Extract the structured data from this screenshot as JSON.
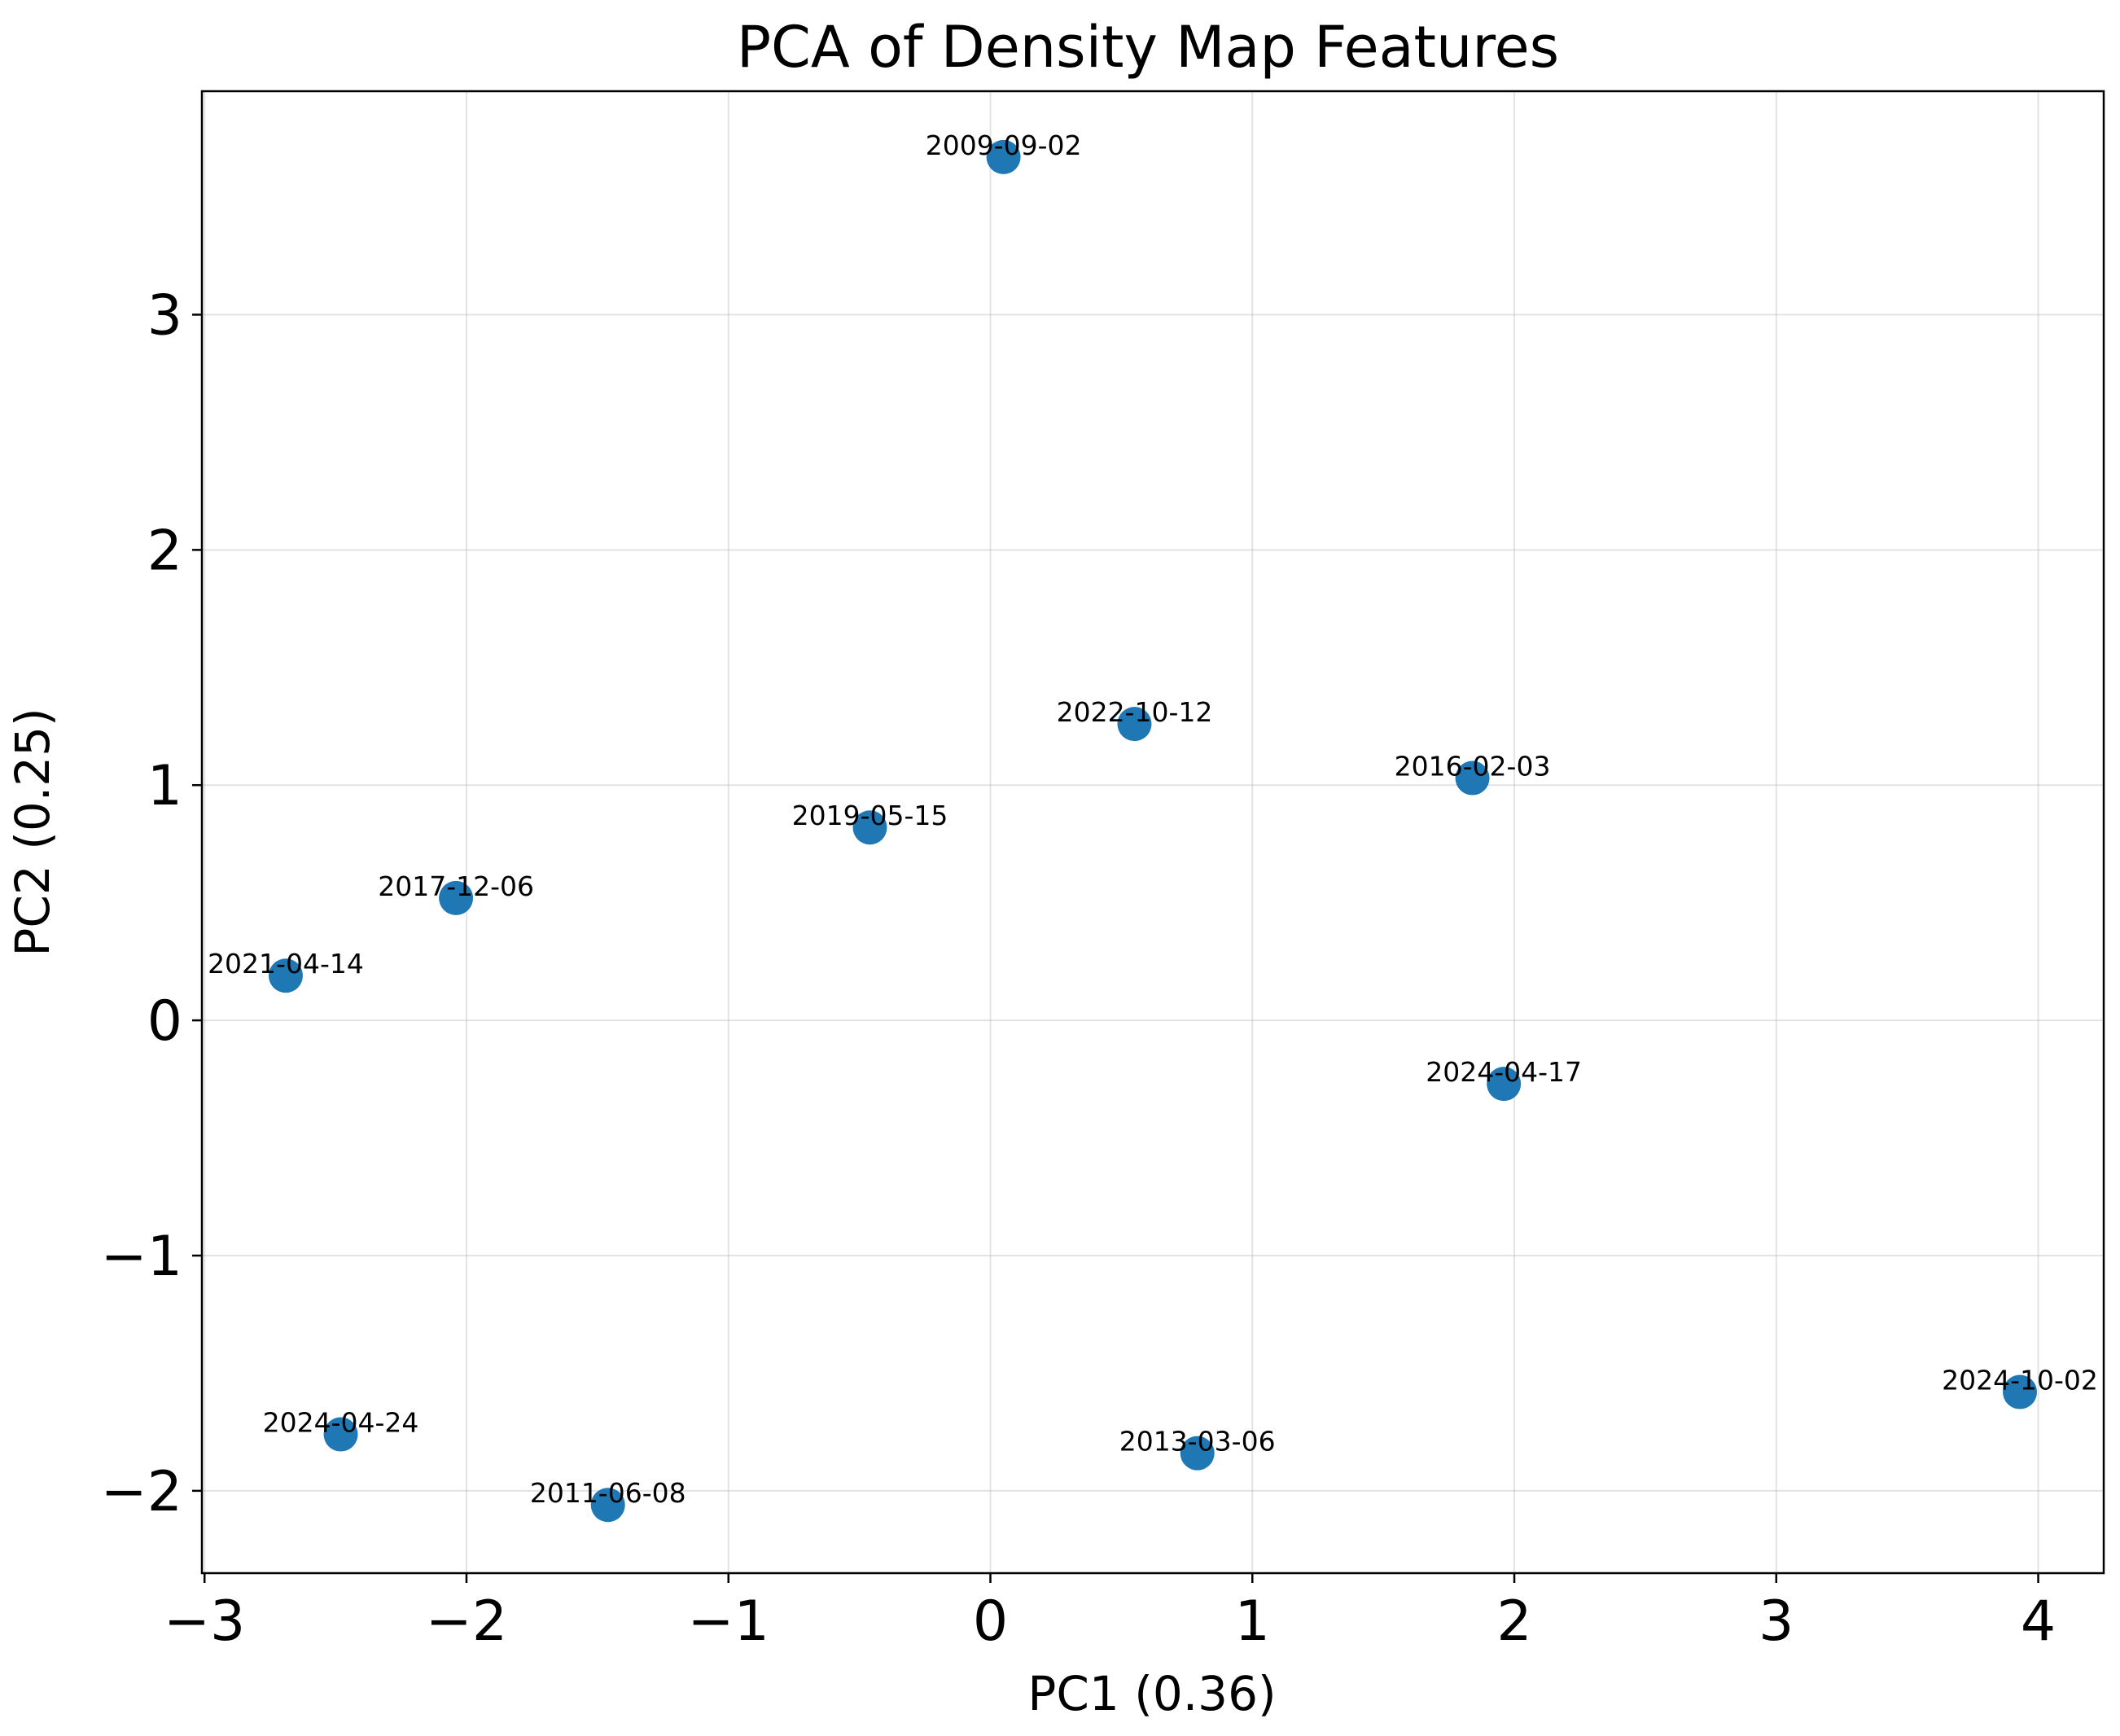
{
  "chart_data": {
    "type": "scatter",
    "title": "PCA of Density Map Features",
    "xlabel": "PC1 (0.36)",
    "ylabel": "PC2 (0.25)",
    "xlim": [
      -3.01,
      4.25
    ],
    "ylim": [
      -2.35,
      3.95
    ],
    "xticks": [
      -3,
      -2,
      -1,
      0,
      1,
      2,
      3,
      4
    ],
    "yticks": [
      -2,
      -1,
      0,
      1,
      2,
      3
    ],
    "grid": true,
    "marker_color": "#1f77b4",
    "points": [
      {
        "x": 0.05,
        "y": 3.67,
        "label": "2009-09-02"
      },
      {
        "x": 0.55,
        "y": 1.26,
        "label": "2022-10-12"
      },
      {
        "x": 1.84,
        "y": 1.03,
        "label": "2016-02-03"
      },
      {
        "x": -0.46,
        "y": 0.82,
        "label": "2019-05-15"
      },
      {
        "x": -2.04,
        "y": 0.52,
        "label": "2017-12-06"
      },
      {
        "x": -2.69,
        "y": 0.19,
        "label": "2021-04-14"
      },
      {
        "x": 1.96,
        "y": -0.27,
        "label": "2024-04-17"
      },
      {
        "x": 3.93,
        "y": -1.58,
        "label": "2024-10-02"
      },
      {
        "x": -2.48,
        "y": -1.76,
        "label": "2024-04-24"
      },
      {
        "x": 0.79,
        "y": -1.84,
        "label": "2013-03-06"
      },
      {
        "x": -1.46,
        "y": -2.06,
        "label": "2011-06-08"
      }
    ]
  }
}
